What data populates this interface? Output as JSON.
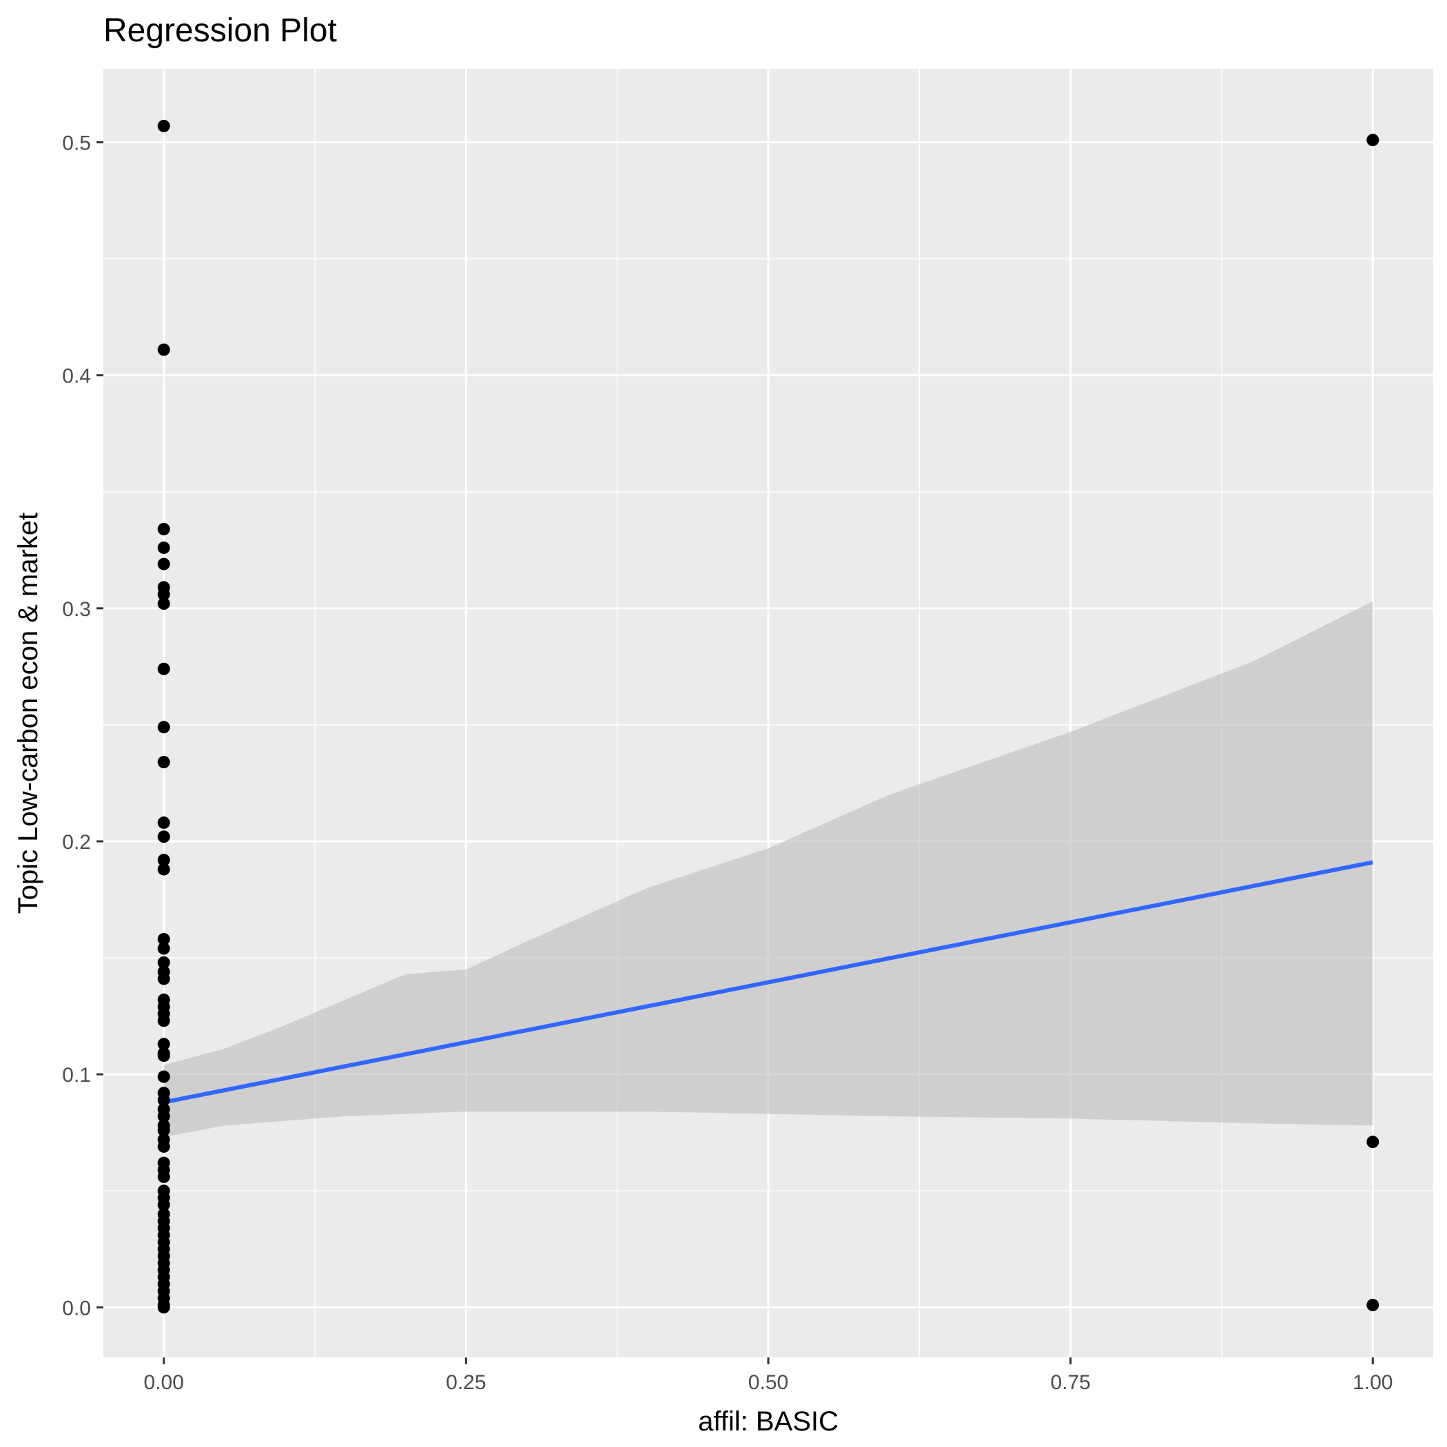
{
  "chart_data": {
    "type": "scatter",
    "title": "Regression Plot",
    "xlabel": "affil: BASIC",
    "ylabel": "Topic Low-carbon econ & market",
    "xlim": [
      -0.05,
      1.05
    ],
    "ylim": [
      -0.0215,
      0.5315
    ],
    "x_ticks": [
      0.0,
      0.25,
      0.5,
      0.75,
      1.0
    ],
    "x_tick_labels": [
      "0.00",
      "0.25",
      "0.50",
      "0.75",
      "1.00"
    ],
    "y_ticks": [
      0.0,
      0.1,
      0.2,
      0.3,
      0.4,
      0.5
    ],
    "y_tick_labels": [
      "0.0",
      "0.1",
      "0.2",
      "0.3",
      "0.4",
      "0.5"
    ],
    "grid": true,
    "legend": "none",
    "colors": {
      "panel": "#ebebeb",
      "grid": "#ffffff",
      "points": "#000000",
      "line": "#3366ff",
      "ribbon": "#bdbdbd"
    },
    "points": [
      {
        "x": 0,
        "y": 0.507
      },
      {
        "x": 0,
        "y": 0.411
      },
      {
        "x": 0,
        "y": 0.334
      },
      {
        "x": 0,
        "y": 0.326
      },
      {
        "x": 0,
        "y": 0.319
      },
      {
        "x": 0,
        "y": 0.309
      },
      {
        "x": 0,
        "y": 0.306
      },
      {
        "x": 0,
        "y": 0.302
      },
      {
        "x": 0,
        "y": 0.274
      },
      {
        "x": 0,
        "y": 0.249
      },
      {
        "x": 0,
        "y": 0.234
      },
      {
        "x": 0,
        "y": 0.208
      },
      {
        "x": 0,
        "y": 0.202
      },
      {
        "x": 0,
        "y": 0.192
      },
      {
        "x": 0,
        "y": 0.188
      },
      {
        "x": 0,
        "y": 0.158
      },
      {
        "x": 0,
        "y": 0.154
      },
      {
        "x": 0,
        "y": 0.148
      },
      {
        "x": 0,
        "y": 0.144
      },
      {
        "x": 0,
        "y": 0.141
      },
      {
        "x": 0,
        "y": 0.132
      },
      {
        "x": 0,
        "y": 0.129
      },
      {
        "x": 0,
        "y": 0.126
      },
      {
        "x": 0,
        "y": 0.123
      },
      {
        "x": 0,
        "y": 0.113
      },
      {
        "x": 0,
        "y": 0.109
      },
      {
        "x": 0,
        "y": 0.108
      },
      {
        "x": 0,
        "y": 0.099
      },
      {
        "x": 0,
        "y": 0.092
      },
      {
        "x": 0,
        "y": 0.089
      },
      {
        "x": 0,
        "y": 0.085
      },
      {
        "x": 0,
        "y": 0.082
      },
      {
        "x": 0,
        "y": 0.078
      },
      {
        "x": 0,
        "y": 0.076
      },
      {
        "x": 0,
        "y": 0.072
      },
      {
        "x": 0,
        "y": 0.069
      },
      {
        "x": 0,
        "y": 0.062
      },
      {
        "x": 0,
        "y": 0.059
      },
      {
        "x": 0,
        "y": 0.056
      },
      {
        "x": 0,
        "y": 0.05
      },
      {
        "x": 0,
        "y": 0.047
      },
      {
        "x": 0,
        "y": 0.044
      },
      {
        "x": 0,
        "y": 0.04
      },
      {
        "x": 0,
        "y": 0.037
      },
      {
        "x": 0,
        "y": 0.034
      },
      {
        "x": 0,
        "y": 0.031
      },
      {
        "x": 0,
        "y": 0.028
      },
      {
        "x": 0,
        "y": 0.025
      },
      {
        "x": 0,
        "y": 0.022
      },
      {
        "x": 0,
        "y": 0.019
      },
      {
        "x": 0,
        "y": 0.016
      },
      {
        "x": 0,
        "y": 0.013
      },
      {
        "x": 0,
        "y": 0.01
      },
      {
        "x": 0,
        "y": 0.007
      },
      {
        "x": 0,
        "y": 0.004
      },
      {
        "x": 0,
        "y": 0.001
      },
      {
        "x": 0,
        "y": 0.0
      },
      {
        "x": 1,
        "y": 0.501
      },
      {
        "x": 1,
        "y": 0.071
      },
      {
        "x": 1,
        "y": 0.001
      }
    ],
    "regression_line": {
      "x": [
        0,
        1
      ],
      "y": [
        0.088,
        0.191
      ]
    },
    "confidence_band": {
      "x": [
        0,
        0.05,
        0.1,
        0.15,
        0.2,
        0.25,
        0.3,
        0.4,
        0.5,
        0.6,
        0.75,
        0.9,
        1.0
      ],
      "upper": [
        0.104,
        0.111,
        0.121,
        0.132,
        0.143,
        0.145,
        0.157,
        0.18,
        0.197,
        0.22,
        0.247,
        0.277,
        0.303
      ],
      "lower": [
        0.073,
        0.078,
        0.08,
        0.082,
        0.083,
        0.084,
        0.084,
        0.084,
        0.083,
        0.082,
        0.081,
        0.079,
        0.078
      ]
    }
  }
}
